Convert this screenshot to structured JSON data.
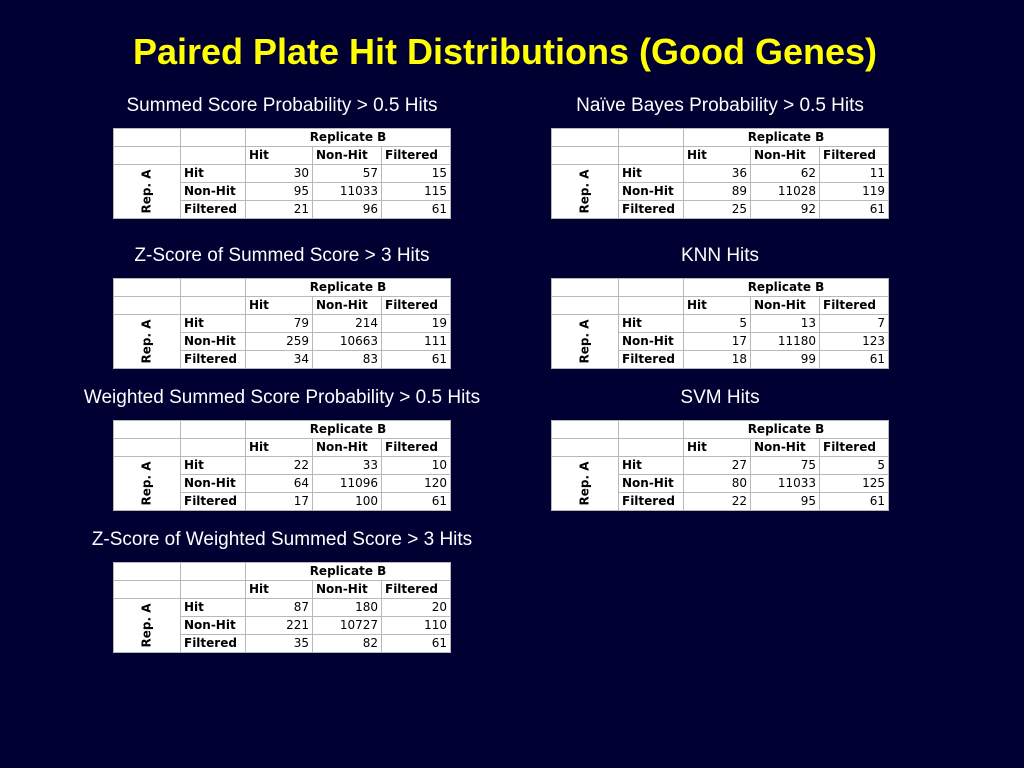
{
  "title": "Paired Plate Hit Distributions (Good Genes)",
  "header": {
    "replicate": "Replicate B",
    "rep_a": "Rep. A",
    "cols": [
      "Hit",
      "Non-Hit",
      "Filtered"
    ],
    "rows": [
      "Hit",
      "Non-Hit",
      "Filtered"
    ]
  },
  "tables": [
    {
      "label": "Summed Score Probability > 0.5 Hits",
      "values": [
        [
          "30",
          "57",
          "15"
        ],
        [
          "95",
          "11033",
          "115"
        ],
        [
          "21",
          "96",
          "61"
        ]
      ]
    },
    {
      "label": "Naïve Bayes Probability > 0.5 Hits",
      "values": [
        [
          "36",
          "62",
          "11"
        ],
        [
          "89",
          "11028",
          "119"
        ],
        [
          "25",
          "92",
          "61"
        ]
      ]
    },
    {
      "label": "Z-Score of Summed Score > 3 Hits",
      "values": [
        [
          "79",
          "214",
          "19"
        ],
        [
          "259",
          "10663",
          "111"
        ],
        [
          "34",
          "83",
          "61"
        ]
      ]
    },
    {
      "label": "KNN Hits",
      "values": [
        [
          "5",
          "13",
          "7"
        ],
        [
          "17",
          "11180",
          "123"
        ],
        [
          "18",
          "99",
          "61"
        ]
      ]
    },
    {
      "label": "Weighted Summed Score Probability > 0.5 Hits",
      "values": [
        [
          "22",
          "33",
          "10"
        ],
        [
          "64",
          "11096",
          "120"
        ],
        [
          "17",
          "100",
          "61"
        ]
      ]
    },
    {
      "label": "SVM Hits",
      "values": [
        [
          "27",
          "75",
          "5"
        ],
        [
          "80",
          "11033",
          "125"
        ],
        [
          "22",
          "95",
          "61"
        ]
      ]
    },
    {
      "label": "Z-Score of Weighted Summed Score > 3 Hits",
      "values": [
        [
          "87",
          "180",
          "20"
        ],
        [
          "221",
          "10727",
          "110"
        ],
        [
          "35",
          "82",
          "61"
        ]
      ]
    }
  ]
}
